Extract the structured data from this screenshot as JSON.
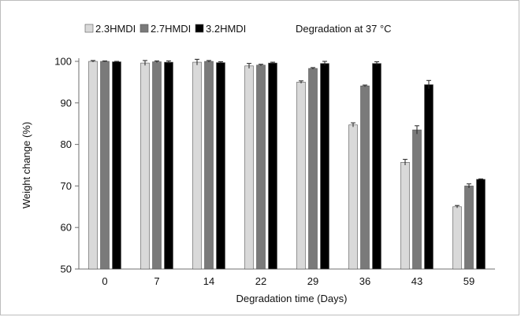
{
  "chart_data": {
    "type": "bar",
    "title": "Degradation at 37 °C",
    "xlabel": "Degradation time (Days)",
    "ylabel": "Weight change (%)",
    "categories": [
      "0",
      "7",
      "14",
      "22",
      "29",
      "36",
      "43",
      "59"
    ],
    "ylim": [
      50,
      100
    ],
    "yticks": [
      "50",
      "60",
      "70",
      "80",
      "90",
      "100"
    ],
    "grid": false,
    "legend": "top-left",
    "series": [
      {
        "name": "2.3HMDI",
        "color": "#d9d9d9",
        "values": [
          100,
          99.6,
          99.8,
          98.9,
          95.0,
          84.7,
          75.7,
          65.0
        ],
        "errors": [
          0.2,
          0.6,
          0.7,
          0.6,
          0.3,
          0.5,
          0.7,
          0.3
        ]
      },
      {
        "name": "2.7HMDI",
        "color": "#7a7a7a",
        "values": [
          100,
          99.9,
          100,
          99.1,
          98.3,
          94.1,
          83.5,
          70.0
        ],
        "errors": [
          0.1,
          0.2,
          0.2,
          0.2,
          0.2,
          0.2,
          1.0,
          0.5
        ]
      },
      {
        "name": "3.2HMDI",
        "color": "#000000",
        "values": [
          99.9,
          99.8,
          99.7,
          99.6,
          99.5,
          99.5,
          94.4,
          71.6
        ],
        "errors": [
          0.1,
          0.3,
          0.2,
          0.2,
          0.5,
          0.4,
          1.0,
          0.1
        ]
      }
    ]
  }
}
